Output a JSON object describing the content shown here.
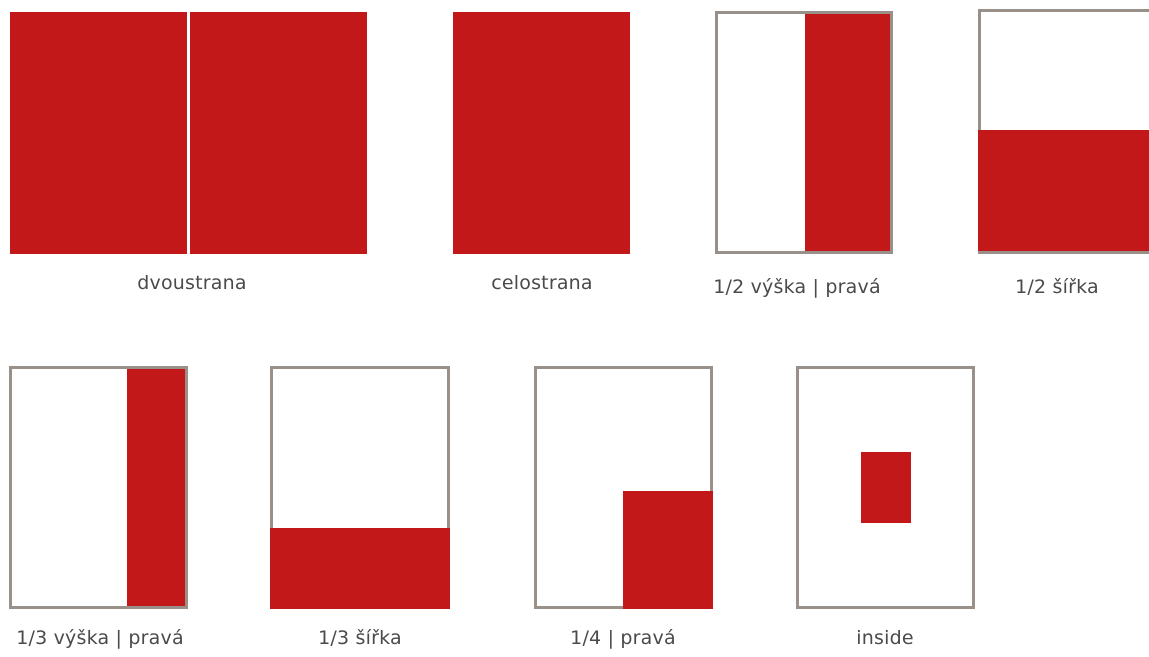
{
  "colors": {
    "ad": "#c3181a",
    "frame": "#9a908a",
    "text": "#4a4a4a"
  },
  "formats": [
    {
      "id": "dvoustrana",
      "label": "dvoustrana",
      "coverage": "two full pages"
    },
    {
      "id": "celostrana",
      "label": "celostrana",
      "coverage": "full page"
    },
    {
      "id": "half-height-right",
      "label": "1/2 výška | pravá",
      "coverage": "right half"
    },
    {
      "id": "half-width",
      "label": "1/2 šířka",
      "coverage": "bottom half"
    },
    {
      "id": "third-height-right",
      "label": "1/3 výška | pravá",
      "coverage": "right third"
    },
    {
      "id": "third-width",
      "label": "1/3 šířka",
      "coverage": "bottom third"
    },
    {
      "id": "quarter-right",
      "label": "1/4 | pravá",
      "coverage": "bottom-right quarter"
    },
    {
      "id": "inside",
      "label": "inside",
      "coverage": "small centered block"
    }
  ]
}
